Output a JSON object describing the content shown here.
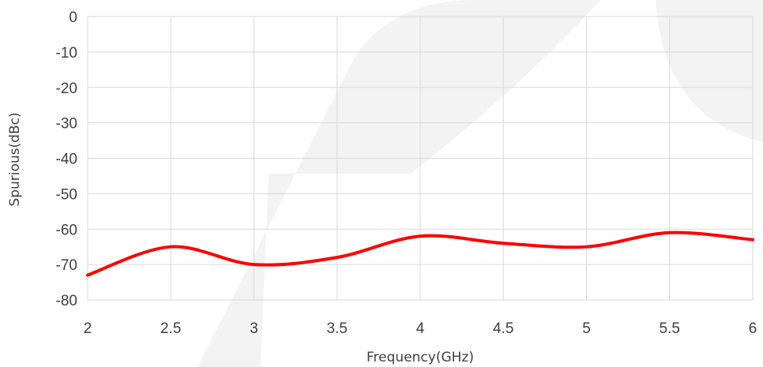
{
  "chart_data": {
    "type": "line",
    "title": "",
    "xlabel": "Frequency(GHz)",
    "ylabel": "Spurious(dBc)",
    "xlim": [
      2,
      6
    ],
    "ylim": [
      -80,
      0
    ],
    "xticks": [
      2,
      2.5,
      3,
      3.5,
      4,
      4.5,
      5,
      5.5,
      6
    ],
    "yticks": [
      0,
      -10,
      -20,
      -30,
      -40,
      -50,
      -60,
      -70,
      -80
    ],
    "grid": true,
    "legend": "none",
    "series": [
      {
        "color": "#ff0000",
        "x": [
          2,
          2.5,
          3,
          3.5,
          4,
          4.5,
          5,
          5.5,
          6
        ],
        "y": [
          -73,
          -65,
          -70,
          -68,
          -62,
          -64,
          -65,
          -61,
          -63
        ]
      }
    ]
  },
  "colors": {
    "grid": "#d9d9d9",
    "watermark": "#f2f2f2",
    "text": "#404040"
  }
}
